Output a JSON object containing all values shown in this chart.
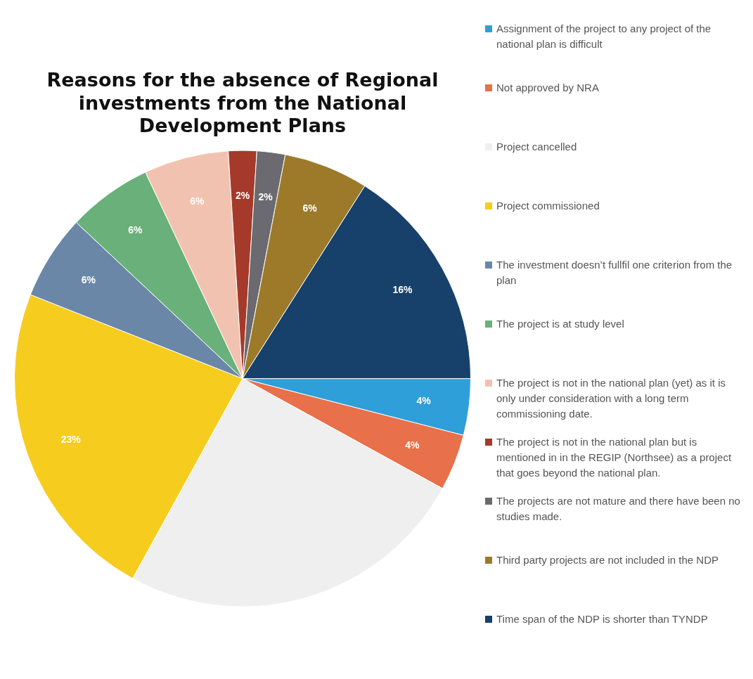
{
  "chart_data": {
    "type": "pie",
    "title": "Reasons for the absence of Regional investments from the National Development Plans",
    "categories": [
      "Assignment of the project to any project of the national plan is difficult",
      "Not approved by NRA",
      "Project cancelled",
      "Project commissioned",
      "The investment doesn’t fullfil one criterion from the plan",
      "The project is at  study level",
      "The project is not in the national plan (yet) as it is only under consideration with a long term commissioning date.",
      "The project is not in the national plan but is mentioned in in the REGIP (Northsee) as a project that goes beyond the national plan.",
      "The projects are not mature and there have been no studies made.",
      "Third party projects are not included in the NDP",
      "Time span of the NDP is shorter than TYNDP"
    ],
    "values": [
      4,
      4,
      25,
      23,
      6,
      6,
      6,
      2,
      2,
      6,
      16
    ],
    "value_labels": [
      "4%",
      "4%",
      null,
      "23%",
      "6%",
      "6%",
      "6%",
      "2%",
      "2%",
      "6%",
      "16%"
    ],
    "colors": [
      "#2e9fd8",
      "#e8704a",
      "#efefef",
      "#f6cc1e",
      "#6a87a8",
      "#6ab07a",
      "#f2c2b0",
      "#a53a2a",
      "#6a6a70",
      "#9c7a2a",
      "#17406b"
    ],
    "legend": "right"
  }
}
